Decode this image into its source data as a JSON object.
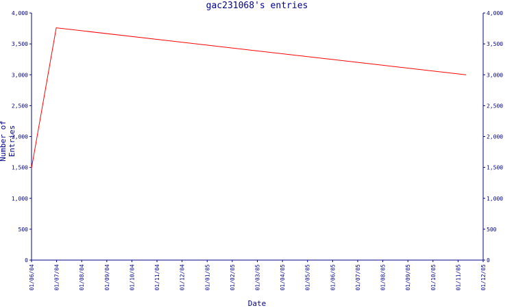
{
  "chart_data": {
    "type": "line",
    "title": "gac231068's entries",
    "xlabel": "Date",
    "ylabel": "Number of Entries",
    "x_tick_labels": [
      "01/06/04",
      "01/07/04",
      "01/08/04",
      "01/09/04",
      "01/10/04",
      "01/11/04",
      "01/12/04",
      "01/01/05",
      "01/02/05",
      "01/03/05",
      "01/04/05",
      "01/05/05",
      "01/06/05",
      "01/07/05",
      "01/08/05",
      "01/09/05",
      "01/10/05",
      "01/11/05",
      "01/12/05"
    ],
    "y_tick_labels": [
      "0",
      "500",
      "1,000",
      "1,500",
      "2,000",
      "2,500",
      "3,000",
      "3,500",
      "4,000"
    ],
    "y_ticks": [
      0,
      500,
      1000,
      1500,
      2000,
      2500,
      3000,
      3500,
      4000
    ],
    "ylim": [
      0,
      4000
    ],
    "xlim": [
      "2004-06-01",
      "2005-12-01"
    ],
    "series": [
      {
        "x": [
          "2004-06-01",
          "2004-07-01",
          "2005-11-10"
        ],
        "values": [
          1490,
          3760,
          3000
        ]
      }
    ],
    "grid": false,
    "y_axis_mirrored_right": true
  },
  "colors": {
    "axis": "#00008b",
    "line": "#ff0000",
    "text": "#00008b"
  }
}
